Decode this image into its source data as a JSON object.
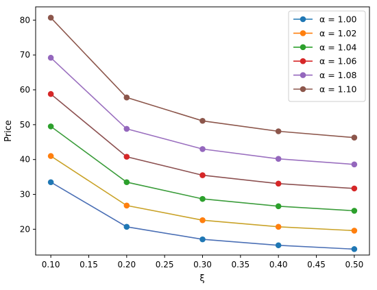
{
  "chart_data": {
    "type": "line",
    "title": "",
    "xlabel": "ξ",
    "ylabel": "Price",
    "x": [
      0.1,
      0.2,
      0.3,
      0.4,
      0.5
    ],
    "xlim": [
      0.08,
      0.52
    ],
    "ylim": [
      12.6,
      83.8
    ],
    "xticks": [
      0.1,
      0.15,
      0.2,
      0.25,
      0.3,
      0.35,
      0.4,
      0.45,
      0.5
    ],
    "xtick_labels": [
      "0.10",
      "0.15",
      "0.20",
      "0.25",
      "0.30",
      "0.35",
      "0.40",
      "0.45",
      "0.50"
    ],
    "yticks": [
      20,
      30,
      40,
      50,
      60,
      70,
      80
    ],
    "ytick_labels": [
      "20",
      "30",
      "40",
      "50",
      "60",
      "70",
      "80"
    ],
    "grid": false,
    "legend_position": "top-right",
    "series": [
      {
        "name": "α = 1.00",
        "legend_color": "#1f77b4",
        "line_color": "#4a6fb5",
        "values": [
          33.5,
          20.7,
          17.1,
          15.4,
          14.3
        ]
      },
      {
        "name": "α = 1.02",
        "legend_color": "#ff7f0e",
        "line_color": "#c9a227",
        "values": [
          41.0,
          26.8,
          22.6,
          20.7,
          19.6
        ]
      },
      {
        "name": "α = 1.04",
        "legend_color": "#2ca02c",
        "line_color": "#3a9c3a",
        "values": [
          49.5,
          33.5,
          28.7,
          26.6,
          25.3
        ]
      },
      {
        "name": "α = 1.06",
        "legend_color": "#d62728",
        "line_color": "#8c5050",
        "values": [
          58.8,
          40.8,
          35.5,
          33.1,
          31.7
        ]
      },
      {
        "name": "α = 1.08",
        "legend_color": "#9467bd",
        "line_color": "#9a6fbf",
        "values": [
          69.2,
          48.8,
          43.0,
          40.2,
          38.6
        ]
      },
      {
        "name": "α = 1.10",
        "legend_color": "#8c564b",
        "line_color": "#8c564b",
        "values": [
          80.7,
          57.8,
          51.1,
          48.1,
          46.3
        ]
      }
    ]
  }
}
